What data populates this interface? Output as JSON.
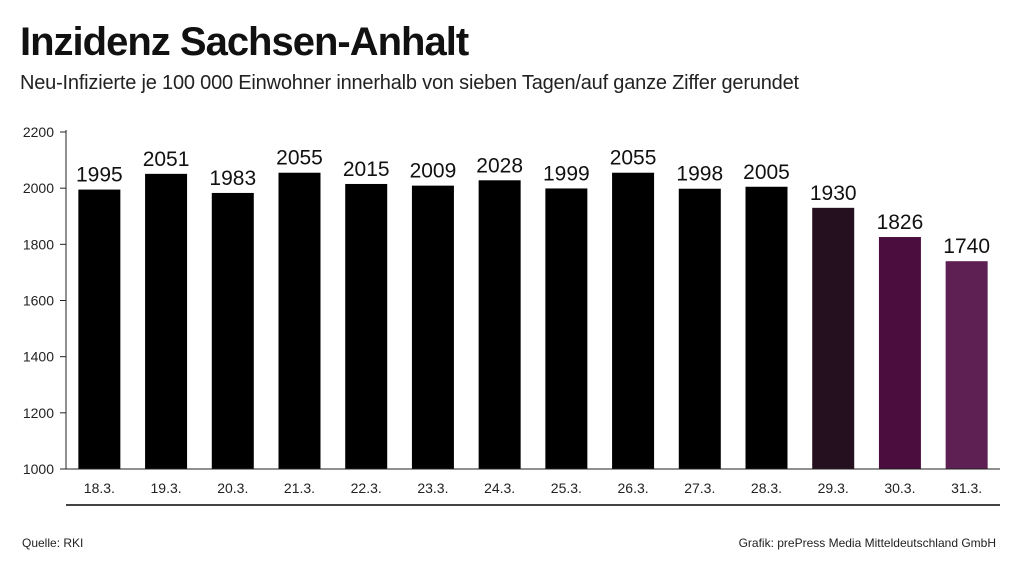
{
  "header": {
    "title": "Inzidenz Sachsen-Anhalt",
    "subtitle": "Neu-Infizierte je 100 000 Einwohner innerhalb von sieben Tagen/auf ganze Ziffer gerundet"
  },
  "footer": {
    "source": "Quelle: RKI",
    "credit": "Grafik: prePress Media Mitteldeutschland GmbH"
  },
  "chart_data": {
    "type": "bar",
    "title": "Inzidenz Sachsen-Anhalt",
    "subtitle": "Neu-Infizierte je 100 000 Einwohner innerhalb von sieben Tagen/auf ganze Ziffer gerundet",
    "xlabel": "",
    "ylabel": "",
    "categories": [
      "18.3.",
      "19.3.",
      "20.3.",
      "21.3.",
      "22.3.",
      "23.3.",
      "24.3.",
      "25.3.",
      "26.3.",
      "27.3.",
      "28.3.",
      "29.3.",
      "30.3.",
      "31.3."
    ],
    "values": [
      1995,
      2051,
      1983,
      2055,
      2015,
      2009,
      2028,
      1999,
      2055,
      1998,
      2005,
      1930,
      1826,
      1740
    ],
    "bar_colors": [
      "#000000",
      "#000000",
      "#000000",
      "#000000",
      "#000000",
      "#000000",
      "#000000",
      "#000000",
      "#000000",
      "#000000",
      "#000000",
      "#25101f",
      "#4a0d3e",
      "#5e1f52"
    ],
    "ylim": [
      1000,
      2200
    ],
    "yticks": [
      1000,
      1200,
      1400,
      1600,
      1800,
      2000,
      2200
    ],
    "grid": false,
    "data_labels": true
  }
}
